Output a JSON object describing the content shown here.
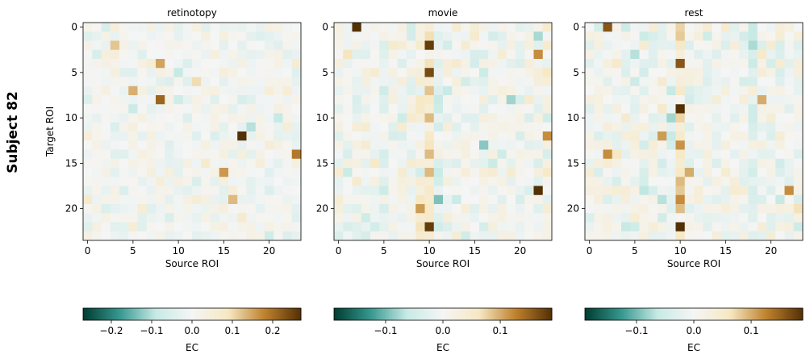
{
  "figure": {
    "subject_label": "Subject 82"
  },
  "colormap": [
    "#003c30",
    "#35978f",
    "#c7eae5",
    "#f5f5f5",
    "#f6e8c3",
    "#bf812d",
    "#543005"
  ],
  "chart_data": [
    {
      "type": "heatmap",
      "title": "retinotopy",
      "xlabel": "Source ROI",
      "ylabel": "Target ROI",
      "n": 24,
      "xticks": [
        0,
        5,
        10,
        15,
        20
      ],
      "yticks": [
        0,
        5,
        10,
        15,
        20
      ],
      "xtick_labels": [
        "0",
        "5",
        "10",
        "15",
        "20"
      ],
      "ytick_labels": [
        "0",
        "5",
        "10",
        "15",
        "20"
      ],
      "colorbar": {
        "label": "EC",
        "vmin": -0.27,
        "vmax": 0.27,
        "ticks": [
          -0.2,
          -0.1,
          0.0,
          0.1,
          0.2
        ],
        "tick_labels": [
          "−0.2",
          "−0.1",
          "0.0",
          "0.1",
          "0.2"
        ]
      },
      "seed": 82,
      "scale": 0.05,
      "strong_cells": [
        [
          12,
          17,
          0.27
        ],
        [
          8,
          8,
          0.21
        ],
        [
          7,
          5,
          0.14
        ],
        [
          4,
          8,
          0.15
        ],
        [
          16,
          15,
          0.16
        ],
        [
          19,
          16,
          0.13
        ],
        [
          14,
          23,
          0.19
        ],
        [
          11,
          18,
          -0.1
        ],
        [
          10,
          21,
          -0.09
        ],
        [
          9,
          5,
          -0.08
        ],
        [
          5,
          10,
          -0.09
        ],
        [
          2,
          3,
          0.12
        ],
        [
          6,
          12,
          0.1
        ]
      ]
    },
    {
      "type": "heatmap",
      "title": "movie",
      "xlabel": "Source ROI",
      "ylabel": "",
      "n": 24,
      "xticks": [
        0,
        5,
        10,
        15,
        20
      ],
      "yticks": [
        0,
        5,
        10,
        15,
        20
      ],
      "xtick_labels": [
        "0",
        "5",
        "10",
        "15",
        "20"
      ],
      "ytick_labels": [
        "0",
        "5",
        "10",
        "15",
        "20"
      ],
      "colorbar": {
        "label": "EC",
        "vmin": -0.19,
        "vmax": 0.19,
        "ticks": [
          -0.1,
          0.0,
          0.1
        ],
        "tick_labels": [
          "−0.1",
          "0.0",
          "0.1"
        ]
      },
      "seed": 821,
      "scale": 0.05,
      "column_bias": {
        "10": 0.07,
        "11": -0.03,
        "9": 0.03,
        "5": -0.02
      },
      "strong_cells": [
        [
          0,
          2,
          0.19
        ],
        [
          2,
          10,
          0.18
        ],
        [
          5,
          10,
          0.17
        ],
        [
          18,
          22,
          0.19
        ],
        [
          22,
          10,
          0.18
        ],
        [
          13,
          16,
          -0.09
        ],
        [
          8,
          19,
          -0.08
        ],
        [
          12,
          23,
          0.12
        ],
        [
          20,
          9,
          0.11
        ],
        [
          3,
          22,
          0.12
        ]
      ]
    },
    {
      "type": "heatmap",
      "title": "rest",
      "xlabel": "Source ROI",
      "ylabel": "",
      "n": 24,
      "xticks": [
        0,
        5,
        10,
        15,
        20
      ],
      "yticks": [
        0,
        5,
        10,
        15,
        20
      ],
      "xtick_labels": [
        "0",
        "5",
        "10",
        "15",
        "20"
      ],
      "ytick_labels": [
        "0",
        "5",
        "10",
        "15",
        "20"
      ],
      "colorbar": {
        "label": "EC",
        "vmin": -0.19,
        "vmax": 0.19,
        "ticks": [
          -0.1,
          0.0,
          0.1
        ],
        "tick_labels": [
          "−0.1",
          "0.0",
          "0.1"
        ]
      },
      "seed": 8282,
      "scale": 0.05,
      "column_bias": {
        "10": 0.07,
        "9": -0.02,
        "18": -0.03
      },
      "strong_cells": [
        [
          0,
          2,
          0.16
        ],
        [
          9,
          10,
          0.19
        ],
        [
          22,
          10,
          0.19
        ],
        [
          4,
          10,
          0.16
        ],
        [
          12,
          8,
          0.11
        ],
        [
          16,
          11,
          0.1
        ],
        [
          18,
          22,
          0.12
        ],
        [
          3,
          5,
          -0.07
        ],
        [
          14,
          2,
          0.12
        ],
        [
          8,
          19,
          0.1
        ]
      ]
    }
  ]
}
